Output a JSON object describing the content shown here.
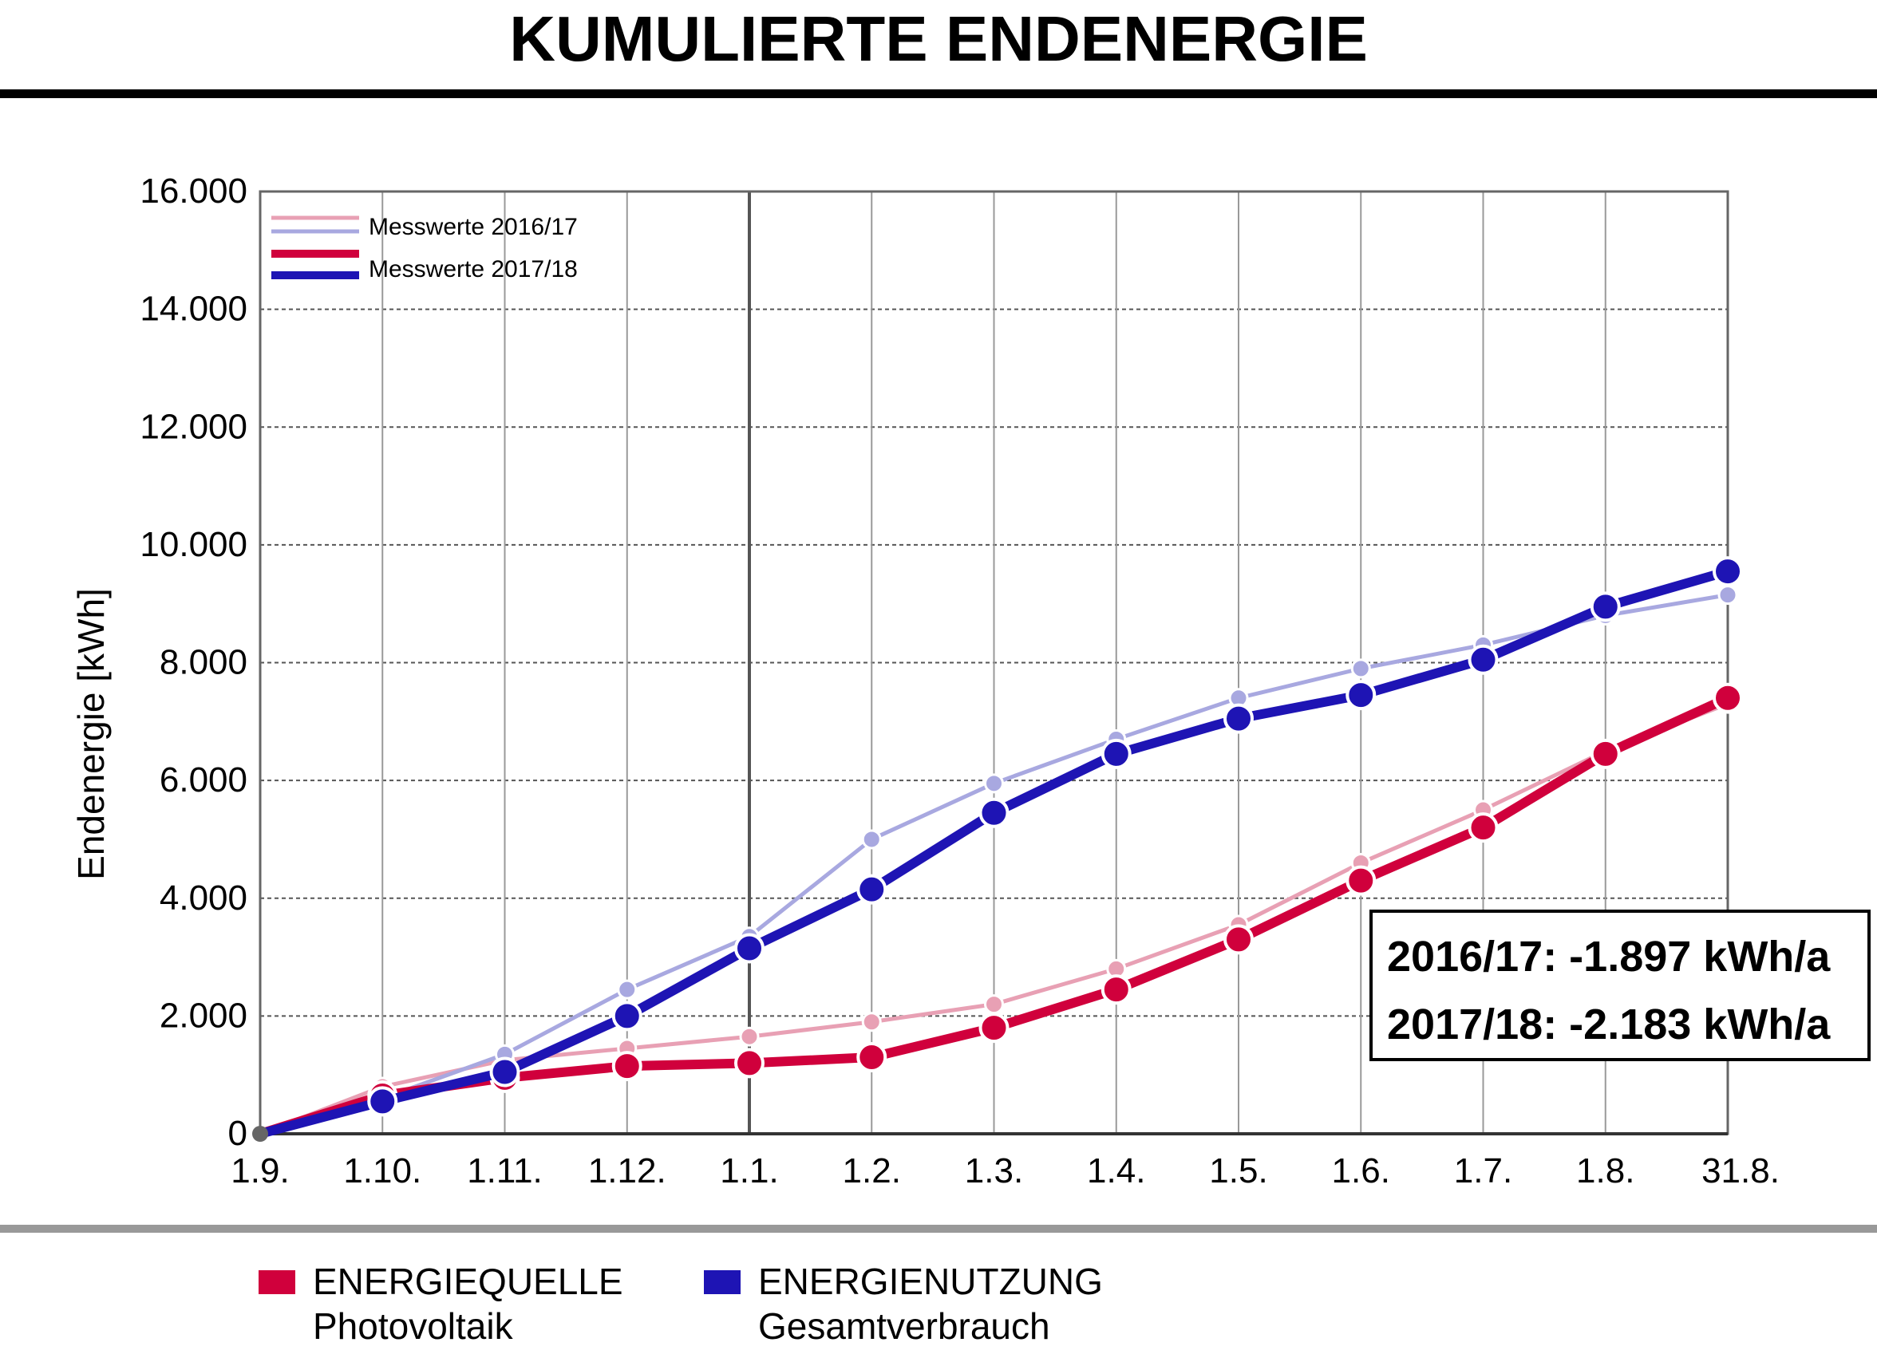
{
  "title": "KUMULIERTE ENDENERGIE",
  "chart_data": {
    "type": "line",
    "ylabel": "Endenergie [kWh]",
    "xlabel": "",
    "ylim": [
      0,
      16000
    ],
    "yticks": [
      "0",
      "2.000",
      "4.000",
      "6.000",
      "8.000",
      "10.000",
      "12.000",
      "14.000",
      "16.000"
    ],
    "categories": [
      "1.9.",
      "1.10.",
      "1.11.",
      "1.12.",
      "1.1.",
      "1.2.",
      "1.3.",
      "1.4.",
      "1.5.",
      "1.6.",
      "1.7.",
      "1.8.",
      "31.8."
    ],
    "grid": true,
    "legend_position": "top-left",
    "legend": [
      "Messwerte 2016/17",
      "Messwerte 2017/18"
    ],
    "series": [
      {
        "group": "ENERGIEQUELLE",
        "period": "2016/17",
        "color": "#e8a0b4",
        "values": [
          0,
          800,
          1250,
          1450,
          1650,
          1900,
          2200,
          2800,
          3550,
          4600,
          5500,
          6500,
          7300
        ]
      },
      {
        "group": "ENERGIENUTZUNG",
        "period": "2016/17",
        "color": "#a8a8e0",
        "values": [
          0,
          600,
          1350,
          2450,
          3350,
          5000,
          5950,
          6700,
          7400,
          7900,
          8300,
          8800,
          9150
        ]
      },
      {
        "group": "ENERGIEQUELLE",
        "period": "2017/18",
        "color": "#d0003c",
        "values": [
          0,
          650,
          950,
          1150,
          1200,
          1300,
          1800,
          2450,
          3300,
          4300,
          5200,
          6450,
          7400
        ]
      },
      {
        "group": "ENERGIENUTZUNG",
        "period": "2017/18",
        "color": "#1e14b4",
        "values": [
          0,
          550,
          1050,
          2000,
          3150,
          4150,
          5450,
          6450,
          7050,
          7450,
          8050,
          8950,
          9550
        ]
      }
    ],
    "annotations": [
      "2016/17: -1.897 kWh/a",
      "2017/18: -2.183 kWh/a"
    ]
  },
  "legend_bottom": [
    {
      "title": "ENERGIEQUELLE",
      "subtitle": "Photovoltaik",
      "color": "#d0003c"
    },
    {
      "title": "ENERGIENUTZUNG",
      "subtitle": "Gesamtverbrauch",
      "color": "#1e14b4"
    }
  ]
}
